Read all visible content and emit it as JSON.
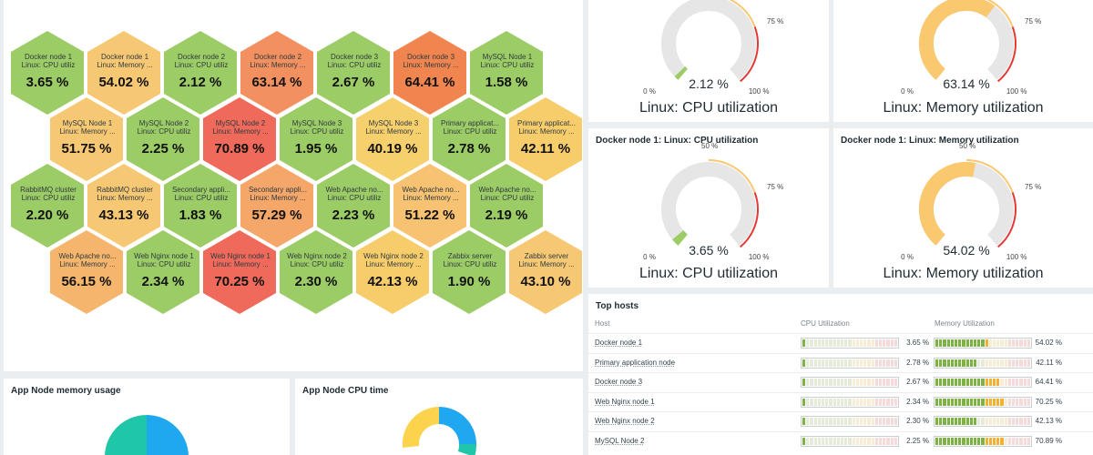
{
  "honeycomb": {
    "rows": [
      [
        {
          "name": "Docker node 1",
          "metric": "Linux: CPU utiliz",
          "value": "3.65 %",
          "color": "#9ccc65"
        },
        {
          "name": "Docker node 1",
          "metric": "Linux: Memory ...",
          "value": "54.02 %",
          "color": "#f7c873"
        },
        {
          "name": "Docker node 2",
          "metric": "Linux: CPU utiliz",
          "value": "2.12 %",
          "color": "#9ccc65"
        },
        {
          "name": "Docker node 2",
          "metric": "Linux: Memory ...",
          "value": "63.14 %",
          "color": "#f2915f"
        },
        {
          "name": "Docker node 3",
          "metric": "Linux: CPU utiliz",
          "value": "2.67 %",
          "color": "#9ccc65"
        },
        {
          "name": "Docker node 3",
          "metric": "Linux: Memory ...",
          "value": "64.41 %",
          "color": "#f0854f"
        },
        {
          "name": "MySQL Node 1",
          "metric": "Linux: CPU utiliz",
          "value": "1.58 %",
          "color": "#9ccc65"
        }
      ],
      [
        {
          "name": "MySQL Node 1",
          "metric": "Linux: Memory ...",
          "value": "51.75 %",
          "color": "#f7c873"
        },
        {
          "name": "MySQL Node 2",
          "metric": "Linux: CPU utiliz",
          "value": "2.25 %",
          "color": "#9ccc65"
        },
        {
          "name": "MySQL Node 2",
          "metric": "Linux: Memory ...",
          "value": "70.89 %",
          "color": "#ef6a5a"
        },
        {
          "name": "MySQL Node 3",
          "metric": "Linux: CPU utiliz",
          "value": "1.95 %",
          "color": "#9ccc65"
        },
        {
          "name": "MySQL Node 3",
          "metric": "Linux: Memory ...",
          "value": "40.19 %",
          "color": "#f7d06e"
        },
        {
          "name": "Primary applicat...",
          "metric": "Linux: CPU utiliz",
          "value": "2.78 %",
          "color": "#9ccc65"
        },
        {
          "name": "Primary applicat...",
          "metric": "Linux: Memory ...",
          "value": "42.11 %",
          "color": "#f7cd6b"
        }
      ],
      [
        {
          "name": "RabbitMQ cluster",
          "metric": "Linux: CPU utiliz",
          "value": "2.20 %",
          "color": "#9ccc65"
        },
        {
          "name": "RabbitMQ cluster",
          "metric": "Linux: Memory ...",
          "value": "43.13 %",
          "color": "#f7c873"
        },
        {
          "name": "Secondary appli...",
          "metric": "Linux: CPU utiliz",
          "value": "1.83 %",
          "color": "#9ccc65"
        },
        {
          "name": "Secondary appli...",
          "metric": "Linux: Memory ...",
          "value": "57.29 %",
          "color": "#f5a76a"
        },
        {
          "name": "Web Apache no...",
          "metric": "Linux: CPU utiliz",
          "value": "2.23 %",
          "color": "#9ccc65"
        },
        {
          "name": "Web Apache no...",
          "metric": "Linux: Memory ...",
          "value": "51.22 %",
          "color": "#f7c271"
        },
        {
          "name": "Web Apache no...",
          "metric": "Linux: CPU utiliz",
          "value": "2.19 %",
          "color": "#9ccc65"
        }
      ],
      [
        {
          "name": "Web Apache no...",
          "metric": "Linux: Memory ...",
          "value": "56.15 %",
          "color": "#f5b56c"
        },
        {
          "name": "Web Nginx node 1",
          "metric": "Linux: CPU utiliz",
          "value": "2.34 %",
          "color": "#9ccc65"
        },
        {
          "name": "Web Nginx node 1",
          "metric": "Linux: Memory ...",
          "value": "70.25 %",
          "color": "#ef6a5a"
        },
        {
          "name": "Web Nginx node 2",
          "metric": "Linux: CPU utiliz",
          "value": "2.30 %",
          "color": "#9ccc65"
        },
        {
          "name": "Web Nginx node 2",
          "metric": "Linux: Memory ...",
          "value": "42.13 %",
          "color": "#f7cd6b"
        },
        {
          "name": "Zabbix server",
          "metric": "Linux: CPU utiliz",
          "value": "1.90 %",
          "color": "#9ccc65"
        },
        {
          "name": "Zabbix server",
          "metric": "Linux: Memory ...",
          "value": "43.10 %",
          "color": "#f7c873"
        }
      ]
    ]
  },
  "gauges": [
    {
      "title": "",
      "value_text": "2.12 %",
      "value": 2.12,
      "fill": "#9ccc65",
      "label": "Linux: CPU utilization",
      "t0": "0 %",
      "t75": "75 %",
      "t100": "100 %",
      "t50": ""
    },
    {
      "title": "",
      "value_text": "63.14 %",
      "value": 63.14,
      "fill": "#f9c86f",
      "label": "Linux: Memory utilization",
      "t0": "0 %",
      "t75": "75 %",
      "t100": "100 %",
      "t50": ""
    },
    {
      "title": "Docker node 1: Linux: CPU utilization",
      "value_text": "3.65 %",
      "value": 3.65,
      "fill": "#9ccc65",
      "label": "Linux: CPU utilization",
      "t0": "0 %",
      "t75": "75 %",
      "t100": "100 %",
      "t50": "50 %"
    },
    {
      "title": "Docker node 1: Linux: Memory utilization",
      "value_text": "54.02 %",
      "value": 54.02,
      "fill": "#f9c86f",
      "label": "Linux: Memory utilization",
      "t0": "0 %",
      "t75": "75 %",
      "t100": "100 %",
      "t50": "50 %"
    }
  ],
  "top_hosts": {
    "title": "Top hosts",
    "col_host": "Host",
    "col_cpu": "CPU Utilization",
    "col_mem": "Memory Utilization",
    "rows": [
      {
        "host": "Docker node 1",
        "cpu": "3.65 %",
        "cpu_v": 3.65,
        "mem": "54.02 %",
        "mem_v": 54.02
      },
      {
        "host": "Primary application node",
        "cpu": "2.78 %",
        "cpu_v": 2.78,
        "mem": "42.11 %",
        "mem_v": 42.11
      },
      {
        "host": "Docker node 3",
        "cpu": "2.67 %",
        "cpu_v": 2.67,
        "mem": "64.41 %",
        "mem_v": 64.41
      },
      {
        "host": "Web Nginx node 1",
        "cpu": "2.34 %",
        "cpu_v": 2.34,
        "mem": "70.25 %",
        "mem_v": 70.25
      },
      {
        "host": "Web Nginx node 2",
        "cpu": "2.30 %",
        "cpu_v": 2.3,
        "mem": "42.13 %",
        "mem_v": 42.13
      },
      {
        "host": "MySQL Node 2",
        "cpu": "2.25 %",
        "cpu_v": 2.25,
        "mem": "70.89 %",
        "mem_v": 70.89
      }
    ]
  },
  "memory_panel": {
    "title": "App Node memory usage"
  },
  "cpu_panel": {
    "title": "App Node CPU time"
  },
  "colors": {
    "green": "#9ccc65",
    "yellow": "#f9c86f",
    "red": "#e53935",
    "teal": "#1fc7a8",
    "blue": "#1fa8f0",
    "gauge_bg": "#e6e6e6"
  }
}
